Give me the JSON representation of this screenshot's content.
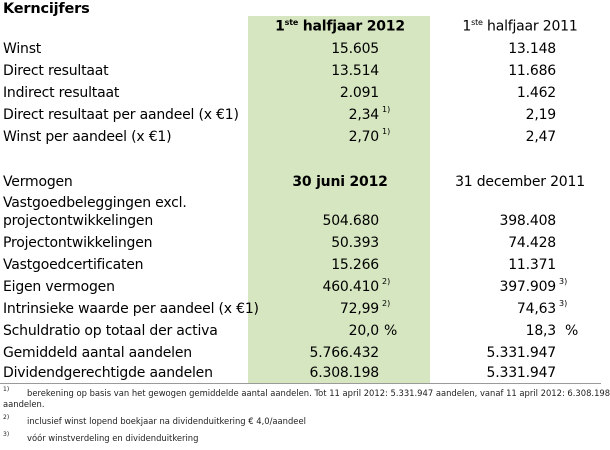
{
  "title": "Kerncijfers",
  "headers1": {
    "col1_pre": "1",
    "col1_sup": "ste",
    "col1_post": " halfjaar 2012",
    "col2_pre": "1",
    "col2_sup": "ste",
    "col2_post": " halfjaar 2011"
  },
  "rows1": [
    {
      "label": "Winst",
      "v1": "15.605",
      "v2": "13.148"
    },
    {
      "label": "Direct resultaat",
      "v1": "13.514",
      "v2": "11.686"
    },
    {
      "label": "Indirect resultaat",
      "v1": "2.091",
      "v2": "1.462"
    },
    {
      "label": "Direct resultaat per aandeel (x €1)",
      "v1": "2,34",
      "v1_sup": "1)",
      "v2": "2,19"
    },
    {
      "label": "Winst per aandeel (x €1)",
      "v1": "2,70",
      "v1_sup": "1)",
      "v2": "2,47"
    }
  ],
  "headers2": {
    "label": "Vermogen",
    "col1": "30 juni 2012",
    "col2": "31 december 2011"
  },
  "rows2": [
    {
      "label": "Vastgoedbeleggingen excl."
    },
    {
      "label": "projectontwikkelingen",
      "v1": "504.680",
      "v2": "398.408"
    },
    {
      "label": "Projectontwikkelingen",
      "v1": "50.393",
      "v2": "74.428"
    },
    {
      "label": "Vastgoedcertificaten",
      "v1": "15.266",
      "v2": "11.371"
    },
    {
      "label": "Eigen vermogen",
      "v1": "460.410",
      "v1_sup": "2)",
      "v2": "397.909",
      "v2_sup": "3)"
    },
    {
      "label": "Intrinsieke waarde per aandeel (x €1)",
      "v1": "72,99",
      "v1_sup": "2)",
      "v2": "74,63",
      "v2_sup": "3)"
    },
    {
      "label": "Schuldratio op totaal der activa",
      "v1": "20,0",
      "v1_unit": "%",
      "v2": "18,3",
      "v2_unit": "%"
    },
    {
      "label": "Gemiddeld aantal aandelen",
      "v1": "5.766.432",
      "v2": "5.331.947"
    },
    {
      "label": "Dividendgerechtigde aandelen",
      "v1": "6.308.198",
      "v2": "5.331.947"
    }
  ],
  "footnotes": [
    {
      "num": "1)",
      "text": "berekening op basis van het gewogen gemiddelde aantal aandelen. Tot 11 april 2012: 5.331.947 aandelen, vanaf 11 april 2012: 6.308.198",
      "text2": "aandelen."
    },
    {
      "num": "2)",
      "text": "inclusief winst lopend boekjaar na dividenduitkering €  4,0/aandeel"
    },
    {
      "num": "3)",
      "text": "vóór winstverdeling en dividenduitkering"
    }
  ]
}
